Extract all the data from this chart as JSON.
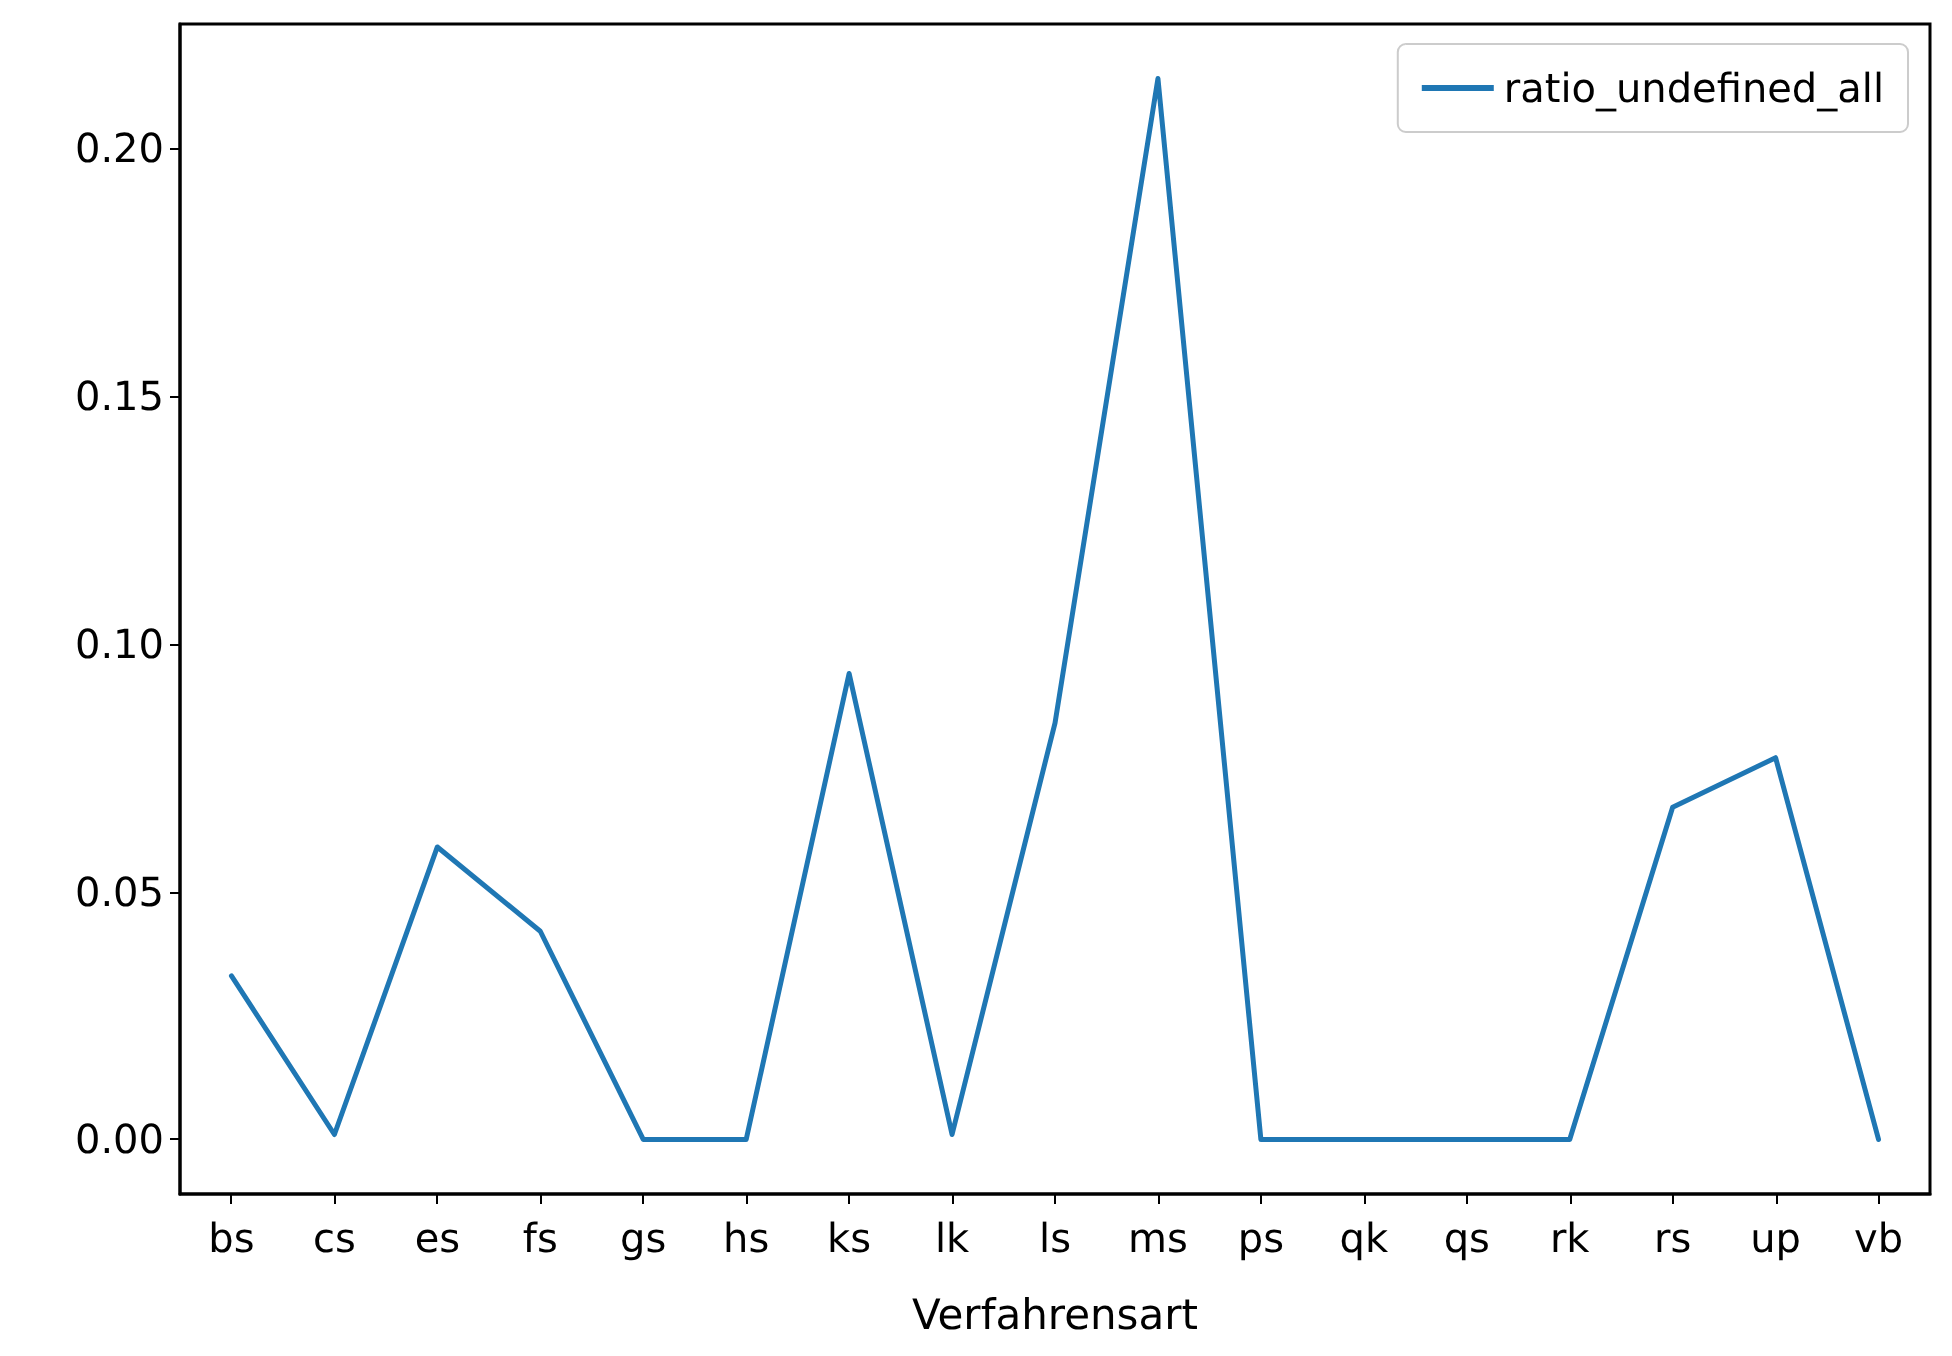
{
  "chart_data": {
    "type": "line",
    "xlabel": "Verfahrensart",
    "categories": [
      "bs",
      "cs",
      "es",
      "fs",
      "gs",
      "hs",
      "ks",
      "lk",
      "ls",
      "ms",
      "ps",
      "qk",
      "qs",
      "rk",
      "rs",
      "up",
      "vb"
    ],
    "series": [
      {
        "name": "ratio_undefined_all",
        "color": "#1f77b4",
        "values": [
          0.033,
          0.001,
          0.059,
          0.042,
          0,
          0,
          0.094,
          0.001,
          0.084,
          0.214,
          0,
          0,
          0,
          0,
          0.067,
          0.077,
          0
        ]
      }
    ],
    "ylim": [
      -0.011,
      0.225
    ],
    "yticks": [
      {
        "value": 0,
        "label": "0.00"
      },
      {
        "value": 0.05,
        "label": "0.05"
      },
      {
        "value": 0.1,
        "label": "0.10"
      },
      {
        "value": 0.15,
        "label": "0.15"
      },
      {
        "value": 0.2,
        "label": "0.20"
      }
    ],
    "grid": false,
    "legend": "top right",
    "marker": "none",
    "line_style": "solid"
  }
}
